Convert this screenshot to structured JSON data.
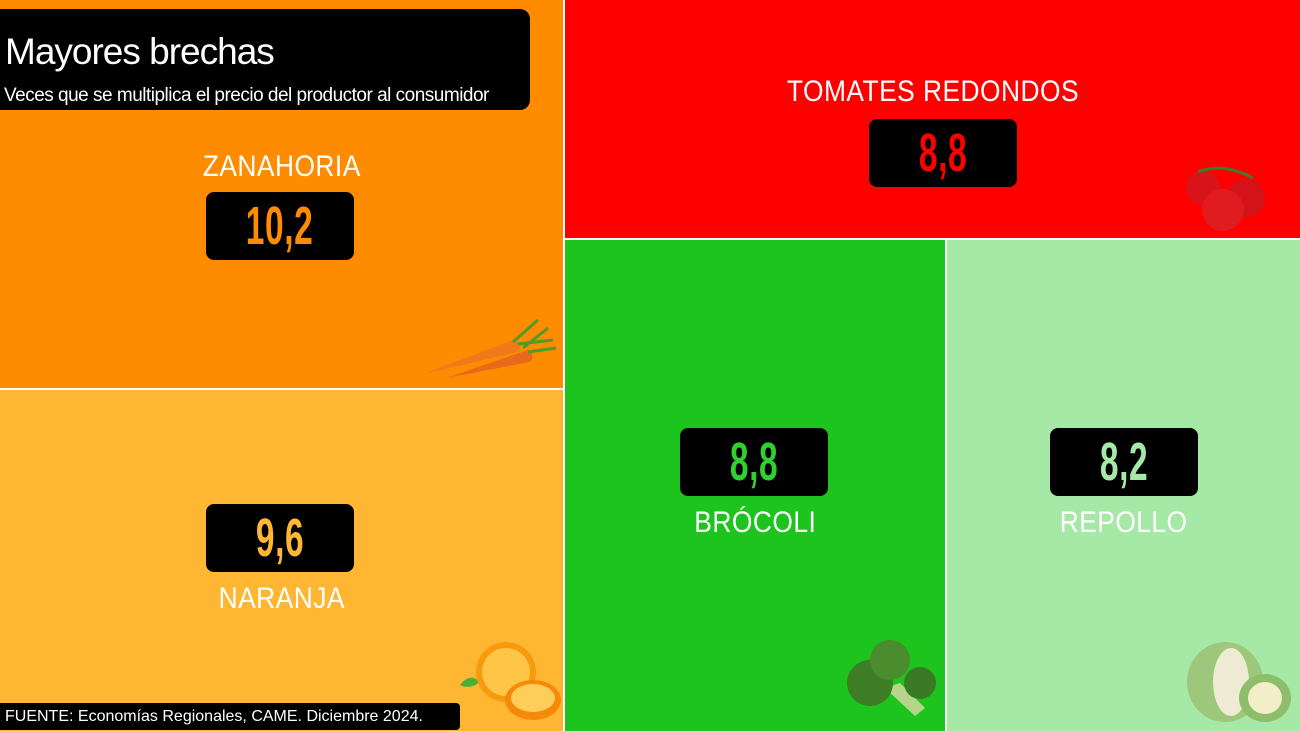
{
  "header": {
    "title": "Mayores brechas",
    "subtitle": "Veces que se multiplica el precio del productor al consumidor"
  },
  "footer": {
    "source": "FUENTE: Economías Regionales, CAME. Diciembre 2024."
  },
  "chart_data": {
    "type": "treemap",
    "title": "Mayores brechas",
    "subtitle": "Veces que se multiplica el precio del productor al consumidor",
    "items": [
      {
        "label": "ZANAHORIA",
        "value": 10.2,
        "value_text": "10,2",
        "color": "#FF8C00",
        "value_color": "#FF8C00",
        "icon": "carrot-icon"
      },
      {
        "label": "NARANJA",
        "value": 9.6,
        "value_text": "9,6",
        "color": "#FFB733",
        "value_color": "#FFB733",
        "icon": "orange-fruit-icon"
      },
      {
        "label": "TOMATES REDONDOS",
        "value": 8.8,
        "value_text": "8,8",
        "color": "#FF0000",
        "value_color": "#FF0000",
        "icon": "tomato-icon"
      },
      {
        "label": "BRÓCOLI",
        "value": 8.8,
        "value_text": "8,8",
        "color": "#1EC41E",
        "value_color": "#2ED12E",
        "icon": "broccoli-icon"
      },
      {
        "label": "REPOLLO",
        "value": 8.2,
        "value_text": "8,2",
        "color": "#A6E8A6",
        "value_color": "#A6E8A6",
        "icon": "cabbage-icon"
      }
    ]
  }
}
